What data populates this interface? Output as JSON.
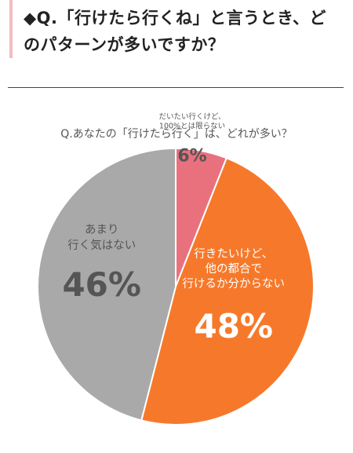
{
  "question": {
    "text": "◆Q.「行けたら行くね」と言うとき、どのパターンが多いですか？"
  },
  "chart_data": {
    "type": "pie",
    "title": "Q.あなたの「行けたら行く」は、どれが多い？",
    "slices": [
      {
        "label": "だいたい行くけど、100%とは限らない",
        "label_lines": [
          "だいたい行くけど、",
          "100%とは限らない"
        ],
        "value": 6,
        "value_text": "6%",
        "color": "#e9717e",
        "text_color": "#555555"
      },
      {
        "label": "行きたいけど、他の都合で行けるか分からない",
        "label_lines": [
          "行きたいけど、",
          "他の都合で",
          "行けるか分からない"
        ],
        "value": 48,
        "value_text": "48%",
        "color": "#f6792b",
        "text_color": "#ffffff"
      },
      {
        "label": "あまり行く気はない",
        "label_lines": [
          "あまり",
          "行く気はない"
        ],
        "value": 46,
        "value_text": "46%",
        "color": "#a9a9a9",
        "text_color": "#555555"
      }
    ]
  }
}
